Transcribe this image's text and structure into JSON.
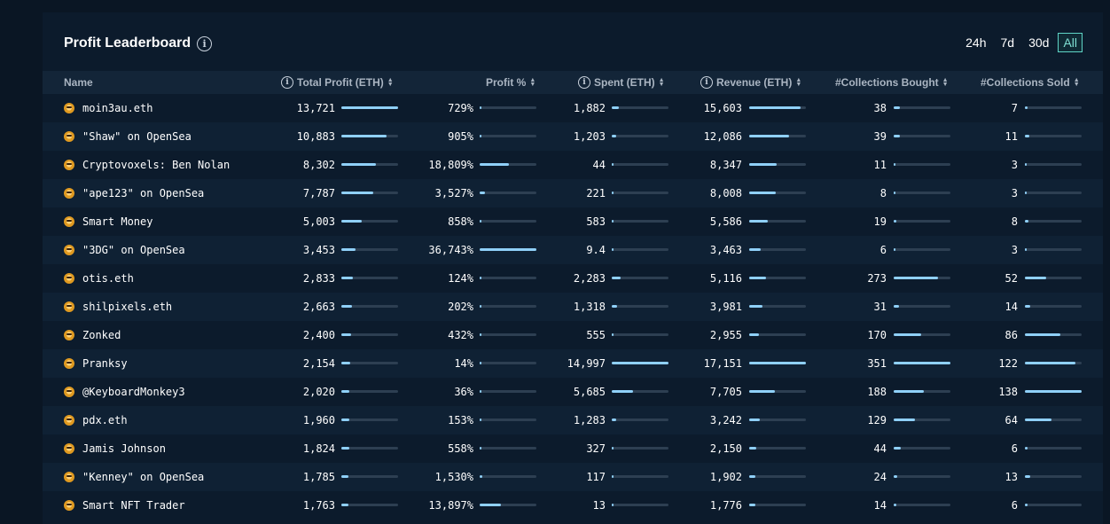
{
  "header": {
    "title": "Profit Leaderboard",
    "time_ranges": [
      "24h",
      "7d",
      "30d",
      "All"
    ],
    "active_range": "All"
  },
  "columns": {
    "name": "Name",
    "total_profit": "Total Profit (ETH)",
    "profit_pct": "Profit %",
    "spent": "Spent (ETH)",
    "revenue": "Revenue (ETH)",
    "bought": "#Collections Bought",
    "sold": "#Collections Sold"
  },
  "rows": [
    {
      "name": "moin3au.eth",
      "total_profit": "13,721",
      "profit_pct": "729%",
      "spent": "1,882",
      "revenue": "15,603",
      "bought": "38",
      "sold": "7"
    },
    {
      "name": "\"Shaw\" on OpenSea",
      "total_profit": "10,883",
      "profit_pct": "905%",
      "spent": "1,203",
      "revenue": "12,086",
      "bought": "39",
      "sold": "11"
    },
    {
      "name": "Cryptovoxels: Ben Nolan",
      "total_profit": "8,302",
      "profit_pct": "18,809%",
      "spent": "44",
      "revenue": "8,347",
      "bought": "11",
      "sold": "3"
    },
    {
      "name": "\"ape123\" on OpenSea",
      "total_profit": "7,787",
      "profit_pct": "3,527%",
      "spent": "221",
      "revenue": "8,008",
      "bought": "8",
      "sold": "3"
    },
    {
      "name": "Smart Money",
      "total_profit": "5,003",
      "profit_pct": "858%",
      "spent": "583",
      "revenue": "5,586",
      "bought": "19",
      "sold": "8"
    },
    {
      "name": "\"3DG\" on OpenSea",
      "total_profit": "3,453",
      "profit_pct": "36,743%",
      "spent": "9.4",
      "revenue": "3,463",
      "bought": "6",
      "sold": "3"
    },
    {
      "name": "otis.eth",
      "total_profit": "2,833",
      "profit_pct": "124%",
      "spent": "2,283",
      "revenue": "5,116",
      "bought": "273",
      "sold": "52"
    },
    {
      "name": "shilpixels.eth",
      "total_profit": "2,663",
      "profit_pct": "202%",
      "spent": "1,318",
      "revenue": "3,981",
      "bought": "31",
      "sold": "14"
    },
    {
      "name": "Zonked",
      "total_profit": "2,400",
      "profit_pct": "432%",
      "spent": "555",
      "revenue": "2,955",
      "bought": "170",
      "sold": "86"
    },
    {
      "name": "Pranksy",
      "total_profit": "2,154",
      "profit_pct": "14%",
      "spent": "14,997",
      "revenue": "17,151",
      "bought": "351",
      "sold": "122"
    },
    {
      "name": "@KeyboardMonkey3",
      "total_profit": "2,020",
      "profit_pct": "36%",
      "spent": "5,685",
      "revenue": "7,705",
      "bought": "188",
      "sold": "138"
    },
    {
      "name": "pdx.eth",
      "total_profit": "1,960",
      "profit_pct": "153%",
      "spent": "1,283",
      "revenue": "3,242",
      "bought": "129",
      "sold": "64"
    },
    {
      "name": "Jamis Johnson",
      "total_profit": "1,824",
      "profit_pct": "558%",
      "spent": "327",
      "revenue": "2,150",
      "bought": "44",
      "sold": "6"
    },
    {
      "name": "\"Kenney\" on OpenSea",
      "total_profit": "1,785",
      "profit_pct": "1,530%",
      "spent": "117",
      "revenue": "1,902",
      "bought": "24",
      "sold": "13"
    },
    {
      "name": "Smart NFT Trader",
      "total_profit": "1,763",
      "profit_pct": "13,897%",
      "spent": "13",
      "revenue": "1,776",
      "bought": "14",
      "sold": "6"
    }
  ],
  "colors": {
    "background": "#0a1624",
    "panel": "#0c1b2c",
    "bar_fill": "#8fd0f8",
    "bar_track": "#2d3f52",
    "active_range": "#5fd4c6",
    "avatar": "#e09a20"
  }
}
